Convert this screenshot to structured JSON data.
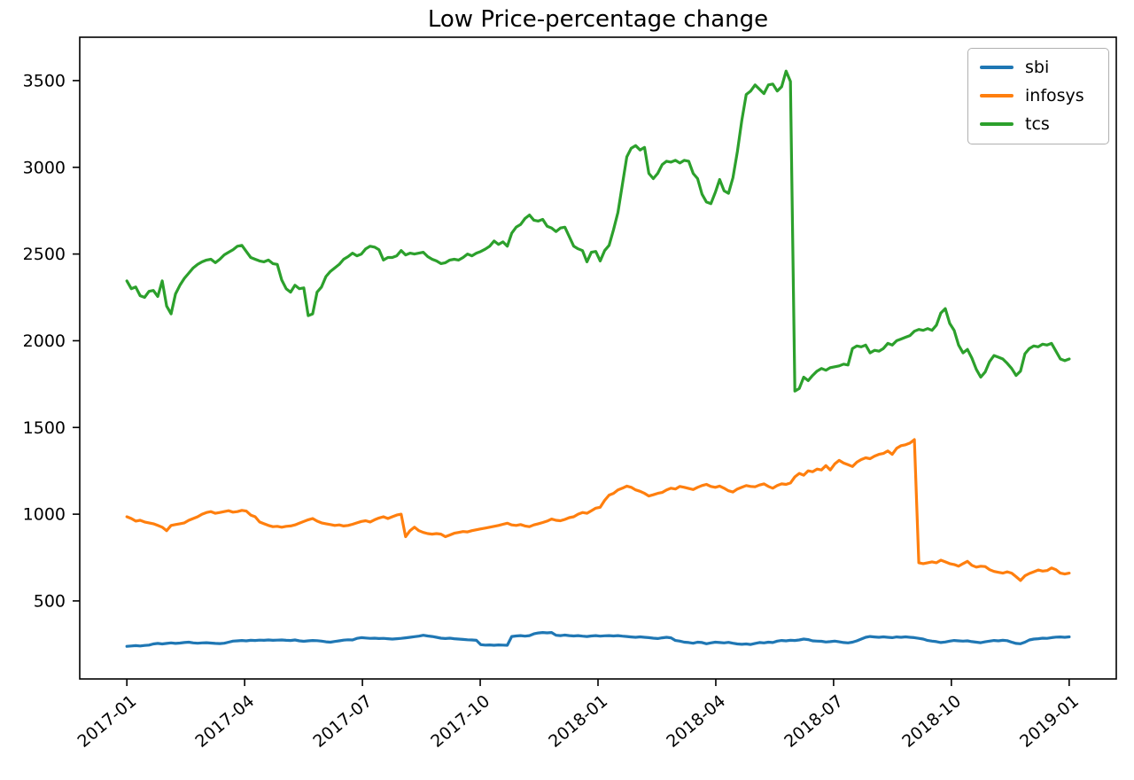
{
  "title": "Low Price-percentage change",
  "legend": {
    "position": "upper right",
    "items": [
      {
        "label": "sbi",
        "color": "#1f77b4"
      },
      {
        "label": "infosys",
        "color": "#ff7f0e"
      },
      {
        "label": "tcs",
        "color": "#2ca02c"
      }
    ]
  },
  "chart_data": {
    "type": "line",
    "title": "Low Price-percentage change",
    "grid": false,
    "legend_position": "upper right",
    "x_axis": {
      "unit": "months since 2017-01",
      "tick_positions": [
        0,
        3,
        6,
        9,
        12,
        15,
        18,
        21,
        24
      ],
      "tick_labels": [
        "2017-01",
        "2017-04",
        "2017-07",
        "2017-10",
        "2018-01",
        "2018-04",
        "2018-07",
        "2018-10",
        "2019-01"
      ],
      "tick_rotation_deg": 40,
      "xlim": [
        -1.2,
        25.2
      ],
      "points_start": 0,
      "points_step": 0.11268
    },
    "y_axis": {
      "tick_values": [
        500,
        1000,
        1500,
        2000,
        2500,
        3000,
        3500
      ],
      "ylim": [
        50,
        3750
      ]
    },
    "series": [
      {
        "name": "sbi",
        "color": "#1f77b4",
        "values": [
          238,
          240,
          242,
          240,
          243,
          245,
          252,
          255,
          252,
          255,
          258,
          255,
          257,
          260,
          262,
          258,
          256,
          258,
          259,
          257,
          255,
          254,
          256,
          262,
          268,
          270,
          272,
          270,
          273,
          272,
          274,
          273,
          275,
          273,
          274,
          275,
          273,
          272,
          275,
          270,
          267,
          270,
          272,
          271,
          268,
          264,
          262,
          266,
          270,
          274,
          276,
          275,
          284,
          288,
          286,
          284,
          285,
          283,
          284,
          282,
          280,
          282,
          284,
          287,
          290,
          294,
          297,
          302,
          298,
          295,
          290,
          285,
          283,
          285,
          282,
          280,
          278,
          276,
          275,
          273,
          248,
          245,
          246,
          244,
          246,
          245,
          244,
          295,
          298,
          300,
          297,
          300,
          310,
          315,
          318,
          316,
          318,
          302,
          300,
          303,
          300,
          298,
          300,
          297,
          295,
          298,
          300,
          297,
          299,
          300,
          298,
          300,
          297,
          295,
          292,
          290,
          293,
          290,
          288,
          285,
          283,
          287,
          290,
          287,
          272,
          268,
          262,
          260,
          256,
          262,
          260,
          253,
          258,
          262,
          260,
          258,
          261,
          256,
          252,
          250,
          252,
          249,
          255,
          260,
          258,
          262,
          260,
          268,
          272,
          270,
          273,
          272,
          275,
          280,
          277,
          270,
          268,
          267,
          263,
          265,
          268,
          264,
          260,
          258,
          262,
          270,
          280,
          290,
          295,
          292,
          290,
          293,
          290,
          288,
          292,
          290,
          293,
          290,
          288,
          284,
          280,
          272,
          268,
          265,
          260,
          263,
          268,
          272,
          270,
          268,
          270,
          265,
          262,
          259,
          264,
          268,
          272,
          270,
          273,
          271,
          262,
          255,
          253,
          262,
          275,
          280,
          282,
          285,
          284,
          288,
          291,
          292,
          290,
          293
        ]
      },
      {
        "name": "infosys",
        "color": "#ff7f0e",
        "values": [
          985,
          975,
          960,
          965,
          955,
          950,
          945,
          935,
          925,
          905,
          935,
          940,
          945,
          950,
          965,
          975,
          985,
          1000,
          1010,
          1015,
          1005,
          1010,
          1015,
          1020,
          1012,
          1015,
          1022,
          1018,
          995,
          985,
          955,
          945,
          935,
          928,
          930,
          925,
          930,
          932,
          938,
          948,
          958,
          968,
          975,
          960,
          950,
          945,
          940,
          935,
          938,
          932,
          935,
          942,
          950,
          958,
          962,
          955,
          968,
          978,
          985,
          975,
          985,
          995,
          1000,
          870,
          905,
          925,
          905,
          895,
          888,
          885,
          888,
          885,
          870,
          880,
          890,
          895,
          900,
          898,
          905,
          910,
          915,
          920,
          925,
          930,
          935,
          942,
          948,
          938,
          935,
          940,
          932,
          928,
          938,
          945,
          952,
          960,
          972,
          965,
          962,
          970,
          980,
          985,
          1000,
          1010,
          1005,
          1020,
          1035,
          1040,
          1080,
          1110,
          1120,
          1140,
          1150,
          1162,
          1155,
          1140,
          1132,
          1120,
          1105,
          1112,
          1120,
          1125,
          1140,
          1150,
          1145,
          1160,
          1155,
          1148,
          1142,
          1155,
          1165,
          1172,
          1160,
          1155,
          1162,
          1150,
          1135,
          1128,
          1145,
          1155,
          1165,
          1160,
          1158,
          1168,
          1175,
          1160,
          1150,
          1165,
          1175,
          1172,
          1180,
          1215,
          1235,
          1225,
          1250,
          1245,
          1260,
          1255,
          1280,
          1255,
          1290,
          1310,
          1295,
          1285,
          1275,
          1300,
          1315,
          1325,
          1320,
          1335,
          1345,
          1350,
          1365,
          1345,
          1380,
          1395,
          1400,
          1410,
          1430,
          720,
          715,
          720,
          725,
          720,
          735,
          725,
          715,
          710,
          700,
          715,
          728,
          705,
          695,
          700,
          698,
          680,
          670,
          665,
          660,
          668,
          660,
          640,
          618,
          645,
          658,
          668,
          678,
          672,
          675,
          690,
          680,
          660,
          655,
          660
        ]
      },
      {
        "name": "tcs",
        "color": "#2ca02c",
        "values": [
          2345,
          2300,
          2310,
          2260,
          2250,
          2285,
          2290,
          2255,
          2345,
          2200,
          2155,
          2270,
          2320,
          2360,
          2390,
          2420,
          2440,
          2455,
          2465,
          2470,
          2450,
          2470,
          2495,
          2510,
          2525,
          2545,
          2550,
          2515,
          2480,
          2470,
          2460,
          2455,
          2465,
          2445,
          2440,
          2350,
          2300,
          2280,
          2320,
          2300,
          2305,
          2145,
          2155,
          2280,
          2310,
          2370,
          2400,
          2420,
          2440,
          2470,
          2485,
          2505,
          2490,
          2500,
          2530,
          2545,
          2540,
          2525,
          2465,
          2480,
          2480,
          2490,
          2520,
          2495,
          2505,
          2500,
          2505,
          2510,
          2485,
          2470,
          2460,
          2445,
          2450,
          2465,
          2470,
          2465,
          2480,
          2500,
          2490,
          2505,
          2515,
          2528,
          2545,
          2575,
          2555,
          2570,
          2545,
          2620,
          2655,
          2670,
          2705,
          2725,
          2695,
          2690,
          2700,
          2660,
          2650,
          2630,
          2650,
          2655,
          2600,
          2545,
          2530,
          2520,
          2455,
          2510,
          2515,
          2460,
          2520,
          2550,
          2640,
          2740,
          2900,
          3060,
          3110,
          3125,
          3100,
          3115,
          2965,
          2935,
          2965,
          3015,
          3035,
          3030,
          3040,
          3025,
          3040,
          3035,
          2965,
          2935,
          2845,
          2800,
          2790,
          2855,
          2930,
          2865,
          2850,
          2940,
          3090,
          3270,
          3420,
          3440,
          3475,
          3450,
          3425,
          3475,
          3480,
          3440,
          3465,
          3555,
          3495,
          1710,
          1725,
          1790,
          1770,
          1800,
          1825,
          1840,
          1830,
          1845,
          1850,
          1855,
          1865,
          1860,
          1955,
          1970,
          1965,
          1975,
          1930,
          1945,
          1940,
          1955,
          1985,
          1975,
          2000,
          2010,
          2020,
          2030,
          2055,
          2065,
          2060,
          2070,
          2060,
          2090,
          2160,
          2185,
          2100,
          2060,
          1975,
          1930,
          1950,
          1900,
          1835,
          1790,
          1820,
          1880,
          1915,
          1905,
          1895,
          1870,
          1840,
          1800,
          1825,
          1925,
          1955,
          1970,
          1965,
          1980,
          1975,
          1985,
          1940,
          1895,
          1885,
          1895
        ]
      }
    ]
  }
}
